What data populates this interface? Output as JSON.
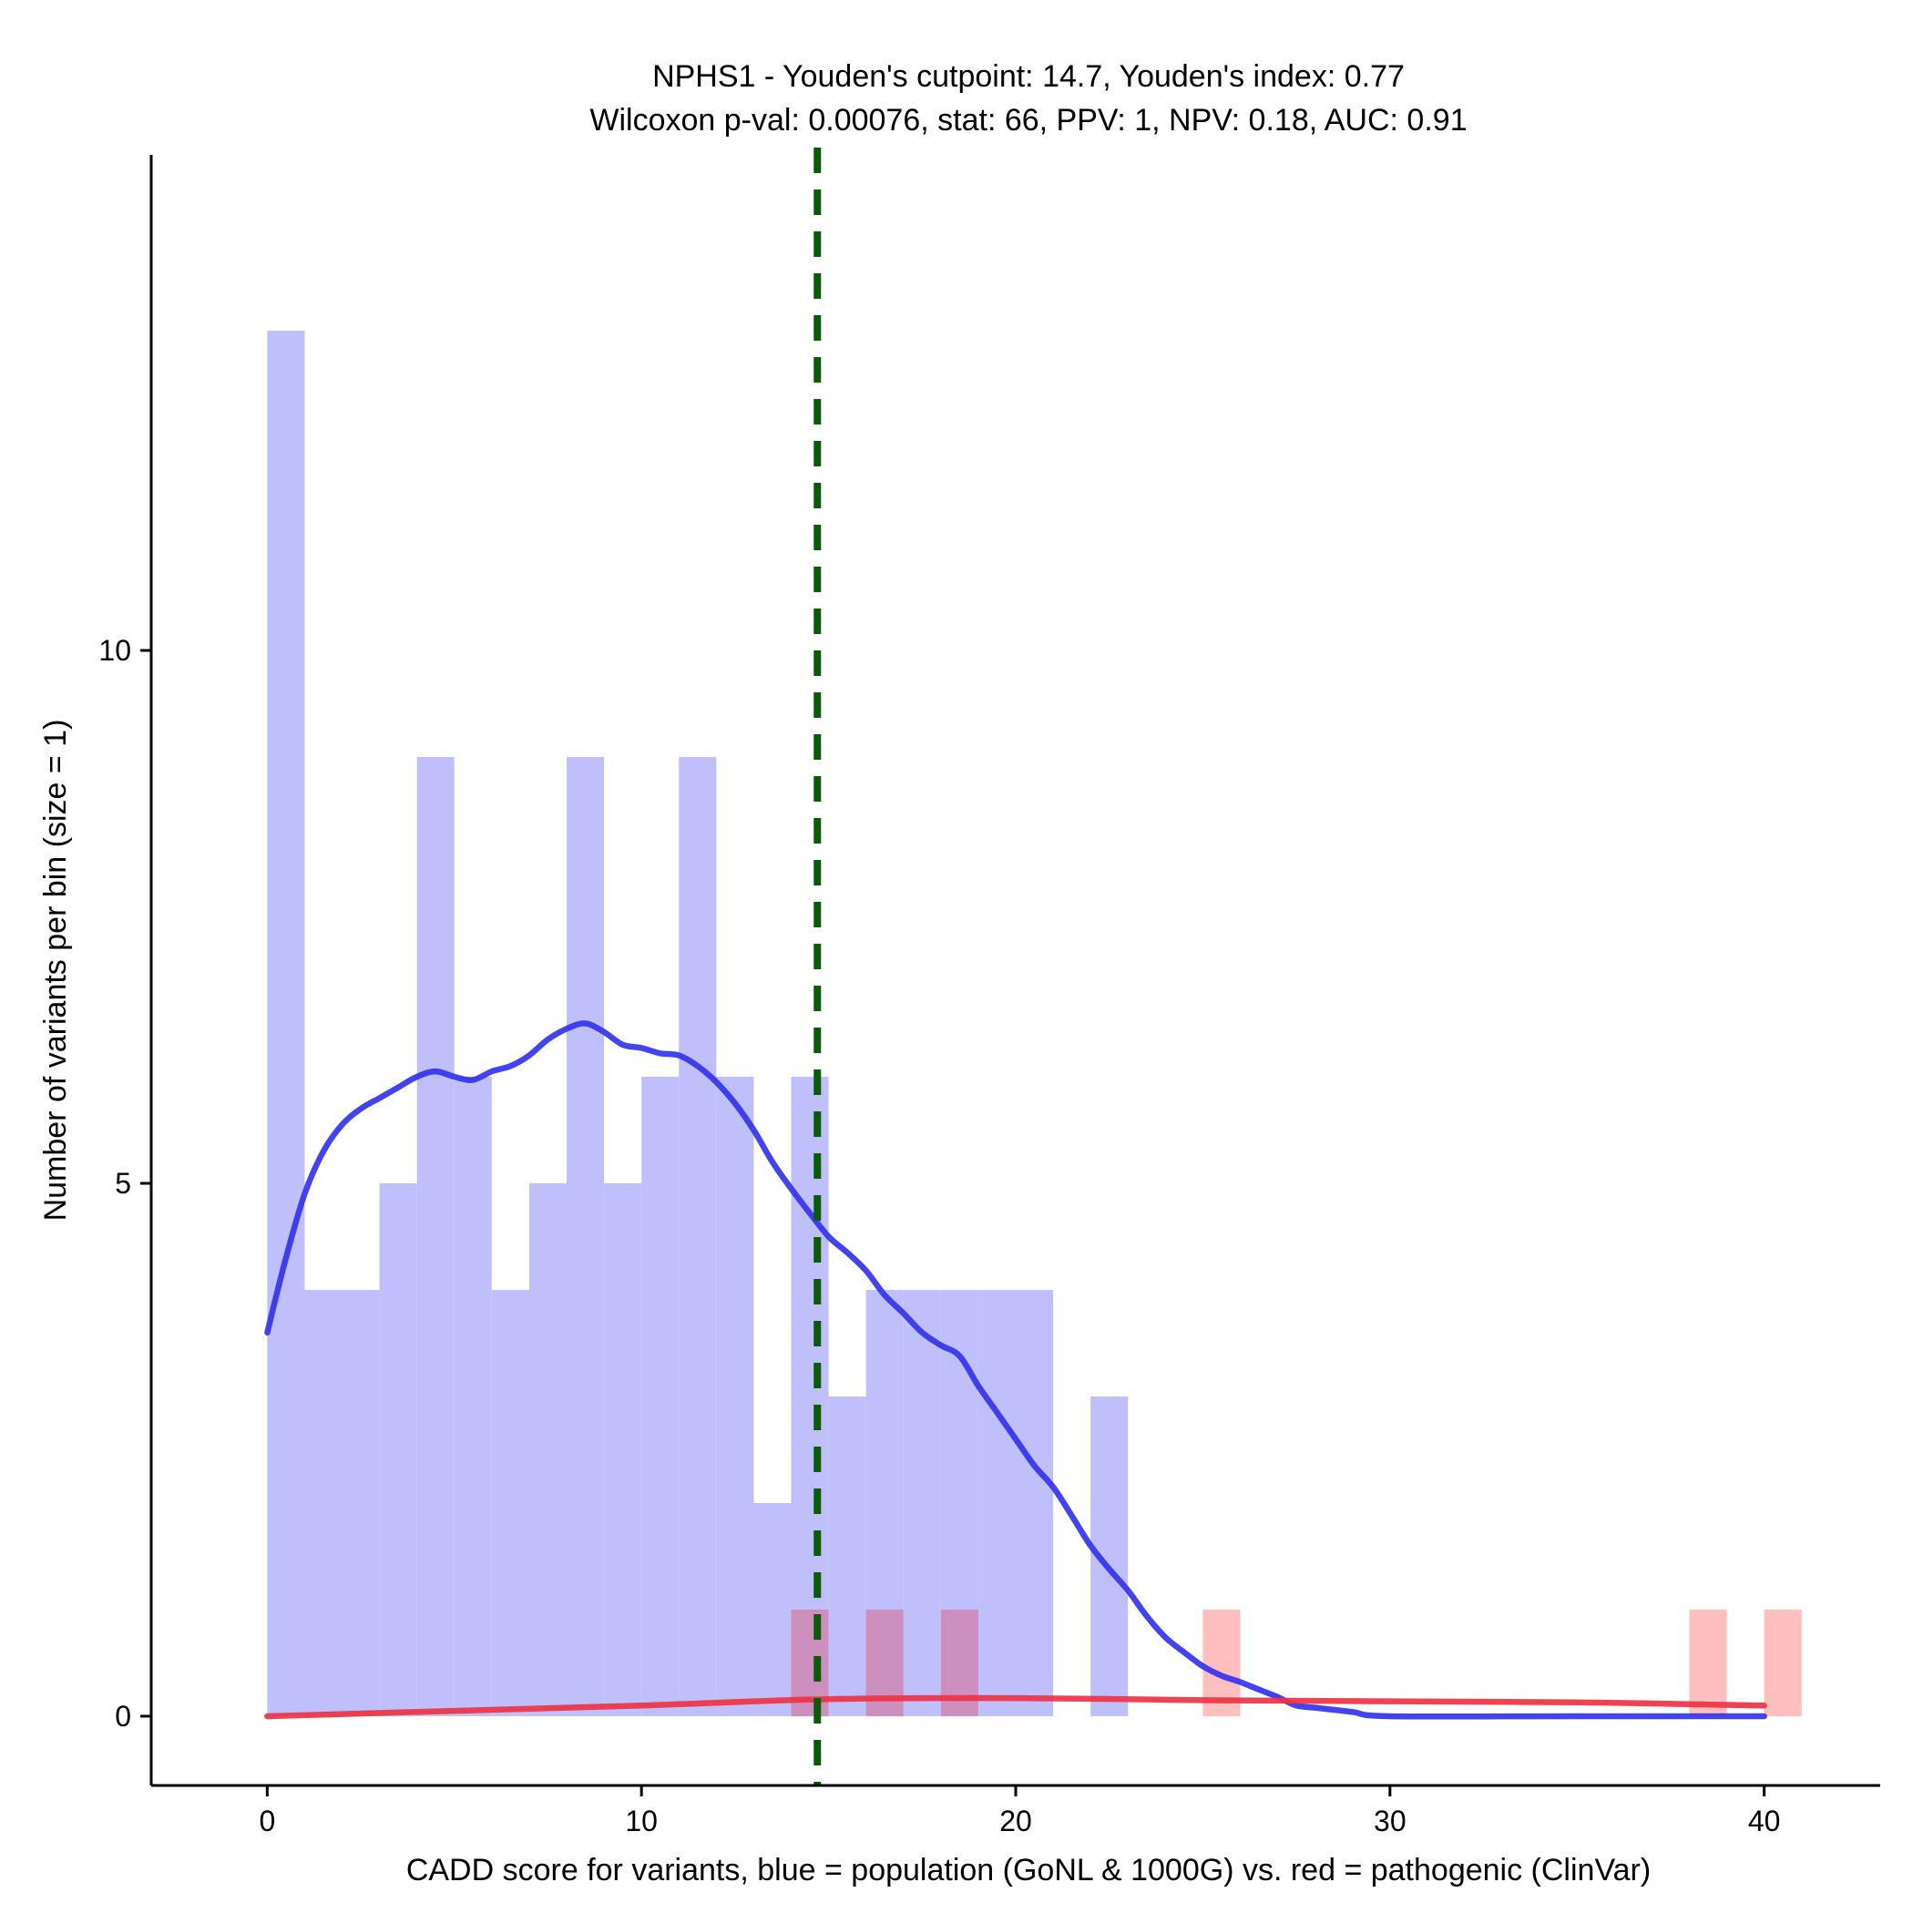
{
  "chart_data": {
    "type": "histogram",
    "title_line1": "NPHS1 - Youden's cutpoint: 14.7, Youden's index: 0.77",
    "title_line2": "Wilcoxon p-val: 0.00076, stat: 66, PPV: 1, NPV: 0.18, AUC: 0.91",
    "xlabel": "CADD score for variants, blue = population (GoNL & 1000G) vs. red = pathogenic (ClinVar)",
    "ylabel": "Number of variants per bin (size = 1)",
    "xlim": [
      -3.1,
      43.1
    ],
    "ylim": [
      -0.65,
      14.65
    ],
    "x_ticks": [
      0,
      10,
      20,
      30,
      40
    ],
    "y_ticks": [
      0,
      5,
      10
    ],
    "bin_size": 1,
    "cutpoint": 14.7,
    "colors": {
      "population_bar": "#bfbffb",
      "pathogenic_bar": "#ffbfbf",
      "overlap_bar": "#cc8fbe",
      "population_line": "#3333ee",
      "pathogenic_line": "#ee3344",
      "cutpoint_line": "#0a5a0a"
    },
    "series": [
      {
        "name": "population (GoNL & 1000G)",
        "bins": [
          [
            0,
            13
          ],
          [
            1,
            4
          ],
          [
            2,
            4
          ],
          [
            3,
            5
          ],
          [
            4,
            9
          ],
          [
            5,
            6
          ],
          [
            6,
            4
          ],
          [
            7,
            5
          ],
          [
            8,
            9
          ],
          [
            9,
            5
          ],
          [
            10,
            6
          ],
          [
            11,
            9
          ],
          [
            12,
            6
          ],
          [
            13,
            2
          ],
          [
            14,
            6
          ],
          [
            15,
            3
          ],
          [
            16,
            4
          ],
          [
            17,
            4
          ],
          [
            18,
            4
          ],
          [
            19,
            4
          ],
          [
            20,
            4
          ],
          [
            22,
            3
          ]
        ],
        "density_curve": [
          [
            0,
            3.6
          ],
          [
            0.5,
            4.3
          ],
          [
            1,
            4.9
          ],
          [
            1.5,
            5.3
          ],
          [
            2,
            5.55
          ],
          [
            2.5,
            5.7
          ],
          [
            3,
            5.8
          ],
          [
            3.5,
            5.9
          ],
          [
            4,
            6.0
          ],
          [
            4.5,
            6.05
          ],
          [
            5,
            6.0
          ],
          [
            5.5,
            5.97
          ],
          [
            6,
            6.05
          ],
          [
            6.5,
            6.1
          ],
          [
            7,
            6.2
          ],
          [
            7.5,
            6.35
          ],
          [
            8,
            6.45
          ],
          [
            8.5,
            6.5
          ],
          [
            9,
            6.42
          ],
          [
            9.5,
            6.3
          ],
          [
            10,
            6.27
          ],
          [
            10.5,
            6.22
          ],
          [
            11,
            6.2
          ],
          [
            11.5,
            6.1
          ],
          [
            12,
            5.95
          ],
          [
            12.5,
            5.75
          ],
          [
            13,
            5.5
          ],
          [
            13.5,
            5.2
          ],
          [
            14,
            4.95
          ],
          [
            14.5,
            4.72
          ],
          [
            15,
            4.5
          ],
          [
            15.5,
            4.35
          ],
          [
            16,
            4.18
          ],
          [
            16.5,
            3.95
          ],
          [
            17,
            3.78
          ],
          [
            17.5,
            3.6
          ],
          [
            18,
            3.48
          ],
          [
            18.5,
            3.38
          ],
          [
            19,
            3.1
          ],
          [
            19.5,
            2.85
          ],
          [
            20,
            2.6
          ],
          [
            20.5,
            2.35
          ],
          [
            21,
            2.15
          ],
          [
            21.5,
            1.88
          ],
          [
            22,
            1.6
          ],
          [
            22.5,
            1.38
          ],
          [
            23,
            1.18
          ],
          [
            23.5,
            0.94
          ],
          [
            24,
            0.74
          ],
          [
            24.5,
            0.6
          ],
          [
            25,
            0.47
          ],
          [
            25.5,
            0.38
          ],
          [
            26,
            0.32
          ],
          [
            26.5,
            0.25
          ],
          [
            27,
            0.18
          ],
          [
            27.5,
            0.1
          ],
          [
            28,
            0.08
          ],
          [
            29,
            0.04
          ],
          [
            30,
            0.0
          ],
          [
            35,
            0.0
          ],
          [
            40,
            0.0
          ]
        ]
      },
      {
        "name": "pathogenic (ClinVar)",
        "bins": [
          [
            14,
            1
          ],
          [
            16,
            1
          ],
          [
            18,
            1
          ],
          [
            25,
            1
          ],
          [
            38,
            1
          ],
          [
            40,
            1
          ]
        ],
        "density_curve": [
          [
            0,
            0.0
          ],
          [
            5,
            0.05
          ],
          [
            10,
            0.1
          ],
          [
            15,
            0.16
          ],
          [
            20,
            0.17
          ],
          [
            25,
            0.15
          ],
          [
            30,
            0.14
          ],
          [
            35,
            0.13
          ],
          [
            40,
            0.1
          ]
        ]
      }
    ]
  }
}
